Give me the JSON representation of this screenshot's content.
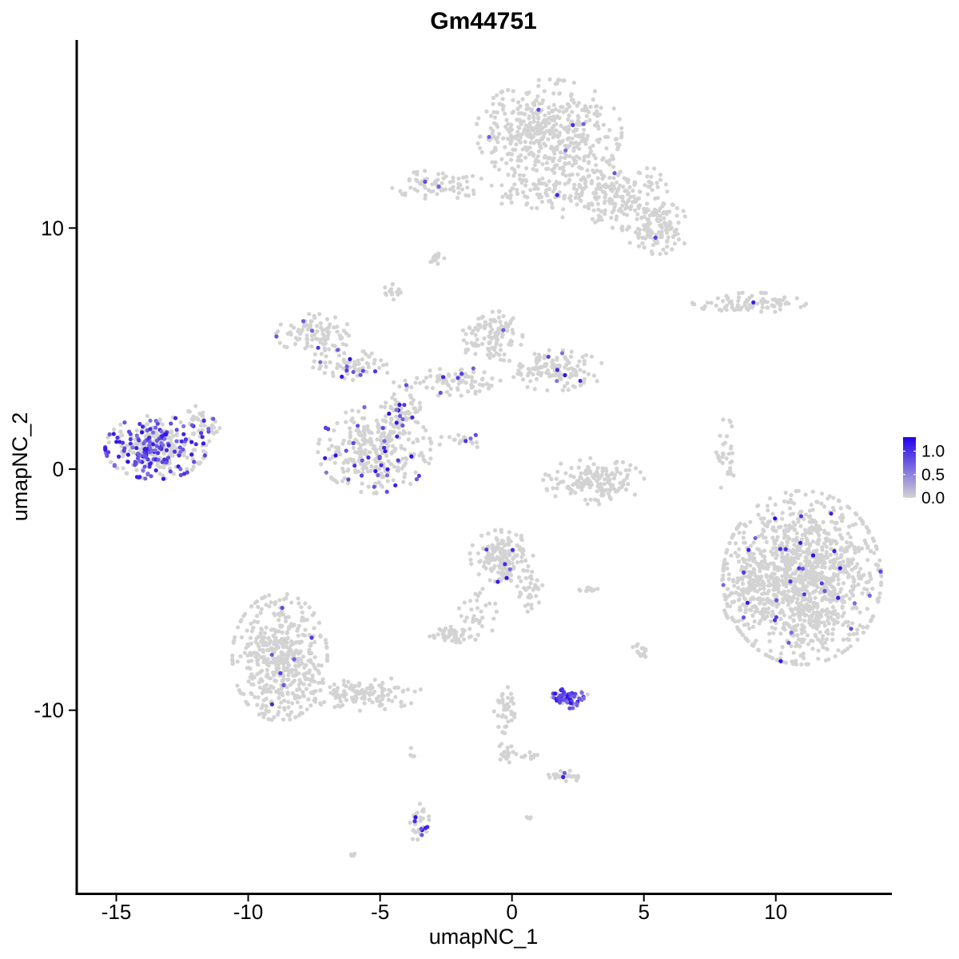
{
  "chart_data": {
    "type": "scatter",
    "title": "Gm44751",
    "xlabel": "umapNC_1",
    "ylabel": "umapNC_2",
    "xlim": [
      -16.5,
      14.4
    ],
    "ylim": [
      -17.6,
      17.8
    ],
    "x_ticks": [
      -15,
      -10,
      -5,
      0,
      5,
      10
    ],
    "x_tick_labels": [
      "-15",
      "-10",
      "-5",
      "0",
      "5",
      "10"
    ],
    "y_ticks": [
      -10,
      0,
      10
    ],
    "y_tick_labels": [
      "-10",
      "0",
      "10"
    ],
    "grid": false,
    "legend": {
      "placement": "right",
      "type": "colorbar",
      "range": [
        0.0,
        1.3
      ],
      "ticks": [
        0.0,
        0.5,
        1.0
      ],
      "tick_labels": [
        "0.0",
        "0.5",
        "1.0"
      ],
      "low_color": "#d3d3d3",
      "high_color": "#2200ee"
    },
    "point_color_zero": "#d3d3d3",
    "point_color_high": "#2200ee",
    "clusters": [
      {
        "cx": 1.4,
        "cy": 14.0,
        "rx": 2.3,
        "ry": 1.8,
        "n": 480,
        "expr_frac": 0.02
      },
      {
        "cx": 3.6,
        "cy": 11.5,
        "rx": 1.9,
        "ry": 1.3,
        "n": 220,
        "expr_frac": 0.02
      },
      {
        "cx": 5.5,
        "cy": 10.0,
        "rx": 1.1,
        "ry": 0.9,
        "n": 130,
        "expr_frac": 0.01
      },
      {
        "cx": -2.8,
        "cy": 11.8,
        "rx": 1.5,
        "ry": 0.5,
        "n": 70,
        "expr_frac": 0.03
      },
      {
        "cx": 0.8,
        "cy": 11.5,
        "rx": 1.6,
        "ry": 0.6,
        "n": 60,
        "expr_frac": 0.0
      },
      {
        "cx": -2.8,
        "cy": 8.8,
        "rx": 0.3,
        "ry": 0.3,
        "n": 15,
        "expr_frac": 0.0
      },
      {
        "cx": -4.5,
        "cy": 7.3,
        "rx": 0.3,
        "ry": 0.4,
        "n": 15,
        "expr_frac": 0.0
      },
      {
        "cx": 9.0,
        "cy": 6.9,
        "rx": 1.8,
        "ry": 0.35,
        "n": 90,
        "expr_frac": 0.04
      },
      {
        "cx": -7.5,
        "cy": 5.6,
        "rx": 1.2,
        "ry": 0.7,
        "n": 100,
        "expr_frac": 0.08
      },
      {
        "cx": -6.0,
        "cy": 4.3,
        "rx": 1.3,
        "ry": 0.5,
        "n": 70,
        "expr_frac": 0.2
      },
      {
        "cx": -0.8,
        "cy": 5.5,
        "rx": 1.0,
        "ry": 0.9,
        "n": 110,
        "expr_frac": 0.03
      },
      {
        "cx": 1.6,
        "cy": 4.1,
        "rx": 1.6,
        "ry": 0.7,
        "n": 130,
        "expr_frac": 0.05
      },
      {
        "cx": -2.0,
        "cy": 3.6,
        "rx": 1.6,
        "ry": 0.5,
        "n": 80,
        "expr_frac": 0.08
      },
      {
        "cx": -5.2,
        "cy": 0.8,
        "rx": 1.8,
        "ry": 1.5,
        "n": 320,
        "expr_frac": 0.14
      },
      {
        "cx": -4.2,
        "cy": 2.5,
        "rx": 0.6,
        "ry": 1.0,
        "n": 60,
        "expr_frac": 0.1
      },
      {
        "cx": -1.9,
        "cy": 1.2,
        "rx": 0.8,
        "ry": 0.3,
        "n": 20,
        "expr_frac": 0.05
      },
      {
        "cx": -13.5,
        "cy": 0.9,
        "rx": 1.6,
        "ry": 1.1,
        "n": 350,
        "expr_frac": 0.45
      },
      {
        "cx": -11.8,
        "cy": 1.7,
        "rx": 0.6,
        "ry": 0.8,
        "n": 40,
        "expr_frac": 0.15
      },
      {
        "cx": 3.1,
        "cy": -0.5,
        "rx": 1.6,
        "ry": 0.8,
        "n": 150,
        "expr_frac": 0.0
      },
      {
        "cx": 8.1,
        "cy": 0.6,
        "rx": 0.3,
        "ry": 1.3,
        "n": 30,
        "expr_frac": 0.0
      },
      {
        "cx": 11.0,
        "cy": -4.5,
        "rx": 2.5,
        "ry": 3.0,
        "n": 1200,
        "expr_frac": 0.025
      },
      {
        "cx": 8.9,
        "cy": -5.0,
        "rx": 0.8,
        "ry": 1.5,
        "n": 80,
        "expr_frac": 0.01
      },
      {
        "cx": -0.4,
        "cy": -3.6,
        "rx": 1.0,
        "ry": 0.9,
        "n": 160,
        "expr_frac": 0.03
      },
      {
        "cx": 0.8,
        "cy": -4.9,
        "rx": 0.5,
        "ry": 0.9,
        "n": 40,
        "expr_frac": 0.0
      },
      {
        "cx": -1.3,
        "cy": -6.0,
        "rx": 0.6,
        "ry": 0.9,
        "n": 35,
        "expr_frac": 0.0
      },
      {
        "cx": -2.4,
        "cy": -6.9,
        "rx": 0.6,
        "ry": 0.3,
        "n": 40,
        "expr_frac": 0.0
      },
      {
        "cx": -8.8,
        "cy": -7.8,
        "rx": 1.5,
        "ry": 2.2,
        "n": 480,
        "expr_frac": 0.01
      },
      {
        "cx": -5.8,
        "cy": -9.3,
        "rx": 2.0,
        "ry": 0.6,
        "n": 130,
        "expr_frac": 0.0
      },
      {
        "cx": 2.2,
        "cy": -9.5,
        "rx": 0.6,
        "ry": 0.35,
        "n": 60,
        "expr_frac": 0.8
      },
      {
        "cx": 4.9,
        "cy": -7.6,
        "rx": 0.3,
        "ry": 0.4,
        "n": 15,
        "expr_frac": 0.0
      },
      {
        "cx": 3.0,
        "cy": -5.0,
        "rx": 0.4,
        "ry": 0.15,
        "n": 10,
        "expr_frac": 0.0
      },
      {
        "cx": -0.2,
        "cy": -10.0,
        "rx": 0.4,
        "ry": 0.8,
        "n": 40,
        "expr_frac": 0.0
      },
      {
        "cx": -0.2,
        "cy": -11.8,
        "rx": 0.3,
        "ry": 0.4,
        "n": 20,
        "expr_frac": 0.0
      },
      {
        "cx": 2.1,
        "cy": -12.7,
        "rx": 0.6,
        "ry": 0.2,
        "n": 30,
        "expr_frac": 0.05
      },
      {
        "cx": 0.7,
        "cy": -11.9,
        "rx": 0.3,
        "ry": 0.2,
        "n": 10,
        "expr_frac": 0.0
      },
      {
        "cx": -3.5,
        "cy": -14.6,
        "rx": 0.3,
        "ry": 0.9,
        "n": 35,
        "expr_frac": 0.05
      },
      {
        "cx": -3.8,
        "cy": -11.8,
        "rx": 0.1,
        "ry": 0.2,
        "n": 4,
        "expr_frac": 0.0
      },
      {
        "cx": 0.6,
        "cy": -14.4,
        "rx": 0.1,
        "ry": 0.1,
        "n": 4,
        "expr_frac": 0.0
      },
      {
        "cx": -6.0,
        "cy": -16.0,
        "rx": 0.15,
        "ry": 0.1,
        "n": 5,
        "expr_frac": 0.0
      }
    ]
  }
}
